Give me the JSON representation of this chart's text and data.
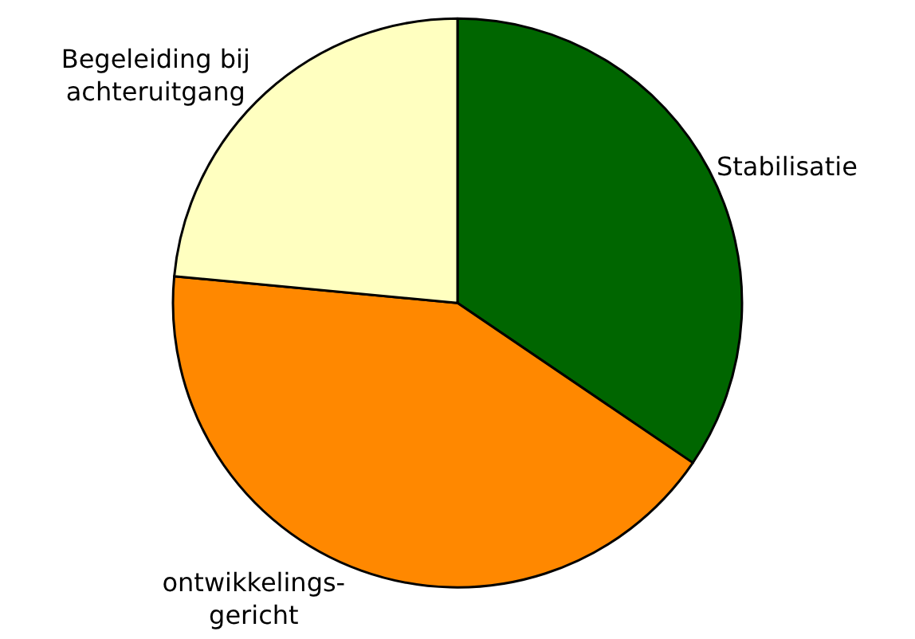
{
  "chart_data": {
    "type": "pie",
    "categories": [
      "Stabilisatie",
      "ontwikkelings-\ngericht",
      "Begeleiding bij\nachteruitgang"
    ],
    "values": [
      34.5,
      42,
      23.5
    ],
    "colors": [
      "#006600",
      "#ff8800",
      "#ffffc0"
    ],
    "legend": false
  }
}
